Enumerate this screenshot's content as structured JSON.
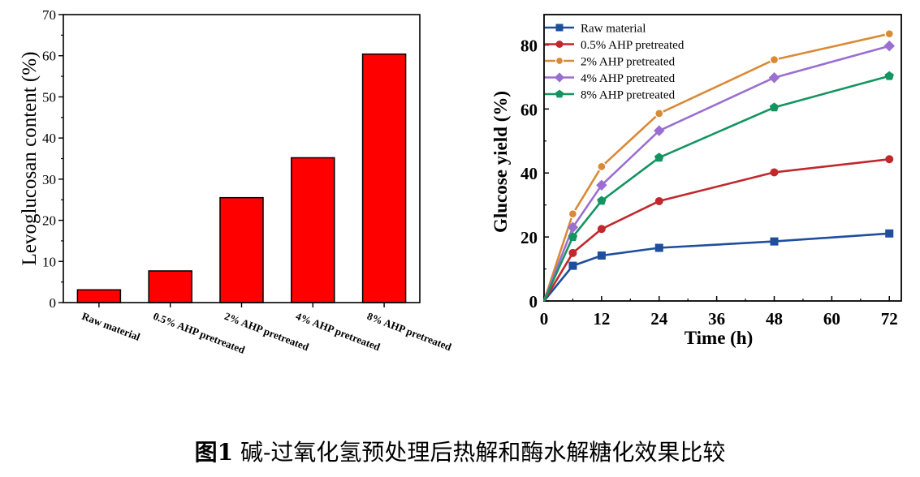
{
  "chart_data": [
    {
      "type": "bar",
      "ylabel": "Levoglucosan content (%)",
      "ylim": [
        0,
        70
      ],
      "yticks": [
        0,
        10,
        20,
        30,
        40,
        50,
        60,
        70
      ],
      "categories": [
        "Raw material",
        "0.5% AHP pretreated",
        "2% AHP pretreated",
        "4% AHP pretreated",
        "8% AHP pretreated"
      ],
      "values": [
        3.1,
        7.7,
        25.5,
        35.2,
        60.4
      ],
      "bar_color": "#ff0000"
    },
    {
      "type": "line",
      "xlabel": "Time (h)",
      "ylabel": "Glucose yield (%)",
      "xlim": [
        0,
        74.5
      ],
      "ylim": [
        0,
        89.5
      ],
      "xticks": [
        0,
        12,
        24,
        36,
        48,
        60,
        72
      ],
      "yticks": [
        0,
        20,
        40,
        60,
        80
      ],
      "x": [
        0,
        6,
        12,
        24,
        48,
        72
      ],
      "legend_position": "top-left",
      "series": [
        {
          "name": "Raw material",
          "color": "#1f4e9c",
          "marker": "square",
          "values": [
            0,
            11,
            14.2,
            16.6,
            18.6,
            21.1
          ]
        },
        {
          "name": "0.5% AHP pretreated",
          "color": "#c0282d",
          "marker": "circle",
          "values": [
            0,
            15,
            22.5,
            31.2,
            40.2,
            44.3
          ]
        },
        {
          "name": "2% AHP pretreated",
          "color": "#d98a37",
          "marker": "circle-hollow",
          "values": [
            0,
            27.2,
            42,
            58.6,
            75.4,
            83.5
          ]
        },
        {
          "name": "4% AHP pretreated",
          "color": "#9a6fd1",
          "marker": "diamond",
          "values": [
            0,
            23,
            36.2,
            53.2,
            69.8,
            79.7
          ]
        },
        {
          "name": "8% AHP pretreated",
          "color": "#139460",
          "marker": "pentagon",
          "values": [
            0,
            20,
            31.3,
            44.8,
            60.5,
            70.3
          ]
        }
      ]
    }
  ],
  "caption": {
    "label": "图1",
    "text": " 碱-过氧化氢预处理后热解和酶水解糖化效果比较"
  }
}
